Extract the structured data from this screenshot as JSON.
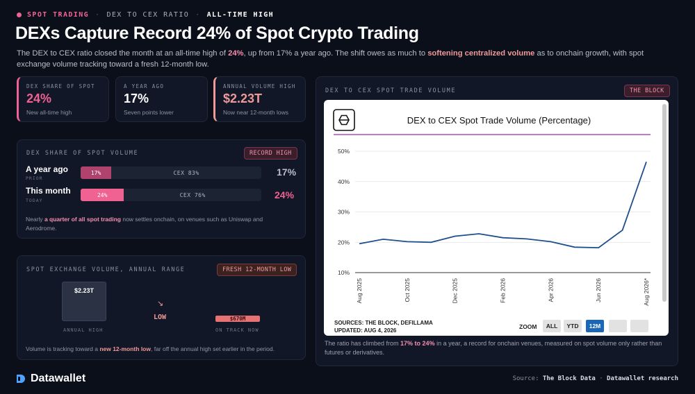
{
  "crumbs": {
    "c1": "SPOT TRADING",
    "sep1": "·",
    "c2": "DEX TO CEX RATIO",
    "sep2": "·",
    "c3": "ALL-TIME HIGH"
  },
  "title": "DEXs Capture Record 24% of Spot Crypto Trading",
  "lede": {
    "p1": "The DEX to CEX ratio closed the month at an all-time high of ",
    "hl1": "24%",
    "p2": ", up from 17% a year ago. The shift owes as much to ",
    "hl2": "softening centralized volume",
    "p3": " as to onchain growth, with spot exchange volume tracking toward a fresh 12-month low."
  },
  "stats": [
    {
      "label": "DEX SHARE OF SPOT",
      "value": "24%",
      "sub": "New all-time high",
      "color": "#f06292"
    },
    {
      "label": "A YEAR AGO",
      "value": "17%",
      "sub": "Seven points lower",
      "color": "#ffffff"
    },
    {
      "label": "ANNUAL VOLUME HIGH",
      "value": "$2.23T",
      "sub": "Now near 12-month lows",
      "color": "#ef9a9a"
    }
  ],
  "share": {
    "title": "DEX SHARE OF SPOT VOLUME",
    "badge": "RECORD HIGH",
    "rows": [
      {
        "label": "A year ago",
        "sub": "PRIOR",
        "dex_label": "17%",
        "cex_label": "CEX 83%",
        "pct": "17%",
        "dex_share": 17,
        "dex_color": "#b0426e",
        "pct_color": "#b8bdc9"
      },
      {
        "label": "This month",
        "sub": "TODAY",
        "dex_label": "24%",
        "cex_label": "CEX 76%",
        "pct": "24%",
        "dex_share": 24,
        "dex_color": "#f06292",
        "pct_color": "#f06292"
      }
    ],
    "note_p1": "Nearly ",
    "note_hl": "a quarter of all spot trading",
    "note_p2": " now settles onchain, on venues such as Uniswap and Aerodrome."
  },
  "range": {
    "title": "SPOT EXCHANGE VOLUME, ANNUAL RANGE",
    "badge": "FRESH 12-MONTH LOW",
    "high_value": "$2.23T",
    "high_caption": "ANNUAL HIGH",
    "arrow": "↘",
    "low_label": "LOW",
    "now_value": "$670M",
    "now_caption": "ON TRACK NOW",
    "note_p1": "Volume is tracking toward a ",
    "note_hl": "new 12-month low",
    "note_p2": ", far off the annual high set earlier in the period."
  },
  "right": {
    "title": "DEX TO CEX SPOT TRADE VOLUME",
    "badge": "THE BLOCK",
    "sources": "SOURCES: THE BLOCK, DEFILLAMA",
    "updated": "UPDATED: AUG 4, 2026",
    "zoom_label": "ZOOM",
    "zoom_buttons": [
      "ALL",
      "YTD",
      "12M",
      "",
      ""
    ],
    "caption_p1": "The ratio has climbed from ",
    "caption_hl": "17% to 24%",
    "caption_p2": " in a year, a record for onchain venues, measured on spot volume only rather than futures or derivatives."
  },
  "chart_data": {
    "type": "line",
    "title": "DEX to CEX Spot Trade Volume (Percentage)",
    "x": [
      "Aug 2025",
      "Sep 2025",
      "Oct 2025",
      "Nov 2025",
      "Dec 2025",
      "Jan 2026",
      "Feb 2026",
      "Mar 2026",
      "Apr 2026",
      "May 2026",
      "Jun 2026",
      "Jul 2026",
      "Aug 2026*"
    ],
    "x_tick_labels": [
      "Aug 2025",
      "Oct 2025",
      "Dec 2025",
      "Feb 2026",
      "Apr 2026",
      "Jun 2026",
      "Aug 2026*"
    ],
    "series": [
      {
        "values": [
          19.5,
          21,
          20.2,
          20,
          22,
          22.8,
          21.5,
          21.1,
          20.2,
          18.4,
          18.2,
          24,
          46.5
        ]
      }
    ],
    "y_ticks": [
      "10%",
      "20%",
      "30%",
      "40%",
      "50%"
    ],
    "ylim": [
      10,
      50
    ],
    "line_color": "#1f4e8c",
    "title_rule_color": "#9c27b0",
    "grid": true
  },
  "footer": {
    "brand": "Datawallet",
    "source_prefix": "Source: ",
    "source_b1": "The Block Data",
    "source_sep": " · ",
    "source_b2": "Datawallet research"
  }
}
